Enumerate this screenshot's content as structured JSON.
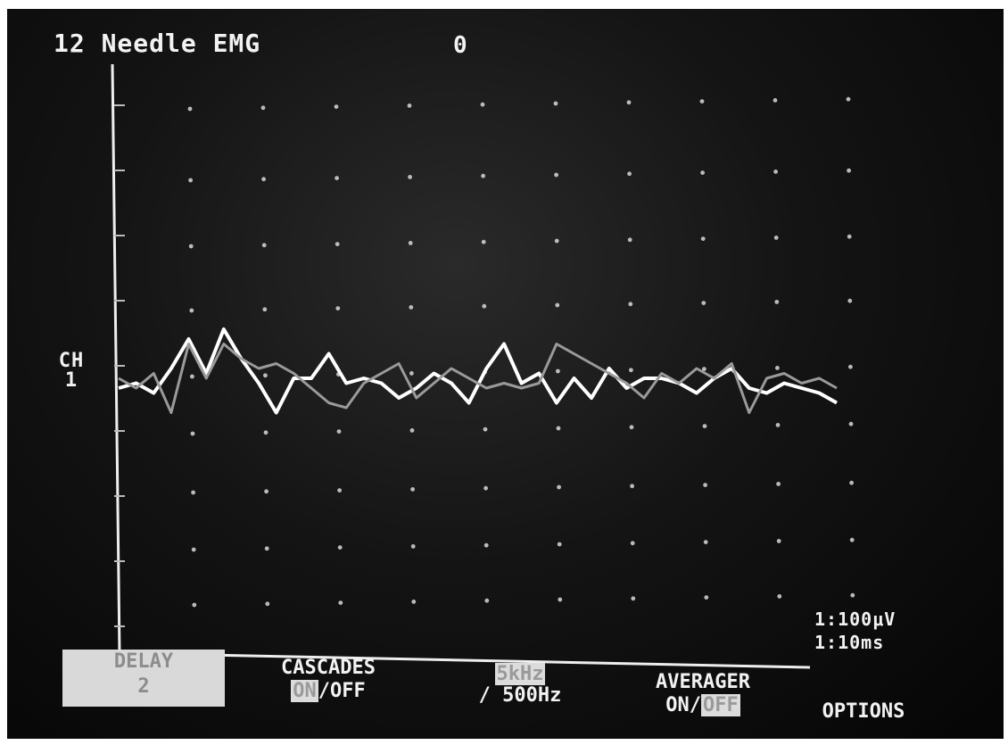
{
  "header": {
    "title": "12 Needle EMG",
    "counter": "0"
  },
  "channel": {
    "label_line1": "CH",
    "label_line2": "1"
  },
  "scale": {
    "voltage": "1:100μV",
    "time": "1:10ms"
  },
  "softkeys": {
    "delay": {
      "label": "DELAY",
      "value": "2"
    },
    "cascades": {
      "label": "CASCADES",
      "on": "ON",
      "sep": "/",
      "off": "OFF",
      "selected": "ON"
    },
    "filter": {
      "low": "5kHz",
      "high": "/ 500Hz"
    },
    "averager": {
      "label": "AVERAGER",
      "on": "ON",
      "sep": "/",
      "off": "OFF",
      "selected": "OFF"
    },
    "options": {
      "label": "OPTIONS"
    }
  },
  "colors": {
    "background": "#0a0a0a",
    "trace_primary": "#ffffff",
    "trace_secondary": "#9a9a9a",
    "grid_dots": "#d8d8d8"
  },
  "chart_data": {
    "type": "line",
    "series": [
      {
        "values": [
          0.2,
          0.0,
          0.3,
          -0.5,
          0.9,
          0.2,
          0.9,
          0.6,
          0.4,
          0.5,
          0.3,
          0.0,
          -0.3,
          -0.4,
          0.1,
          0.3,
          0.5,
          -0.2,
          0.1,
          0.4,
          0.2,
          0.0,
          0.1,
          0.0,
          0.1,
          0.9,
          0.7,
          0.5,
          0.3,
          0.1,
          -0.2,
          0.3,
          0.1,
          0.4,
          0.2,
          0.5,
          -0.5,
          0.2,
          0.3,
          0.1,
          0.2,
          0.0
        ]
      },
      {
        "values": [
          0.0,
          0.1,
          -0.1,
          0.4,
          1.0,
          0.3,
          1.2,
          0.6,
          0.1,
          -0.5,
          0.2,
          0.2,
          0.7,
          0.1,
          0.2,
          0.1,
          -0.2,
          0.0,
          0.3,
          0.1,
          -0.3,
          0.4,
          0.9,
          0.1,
          0.3,
          -0.3,
          0.2,
          -0.2,
          0.4,
          0.0,
          0.2,
          0.2,
          0.1,
          -0.1,
          0.2,
          0.4,
          0.0,
          -0.1,
          0.1,
          0.0,
          -0.1,
          -0.3
        ]
      }
    ]
  }
}
